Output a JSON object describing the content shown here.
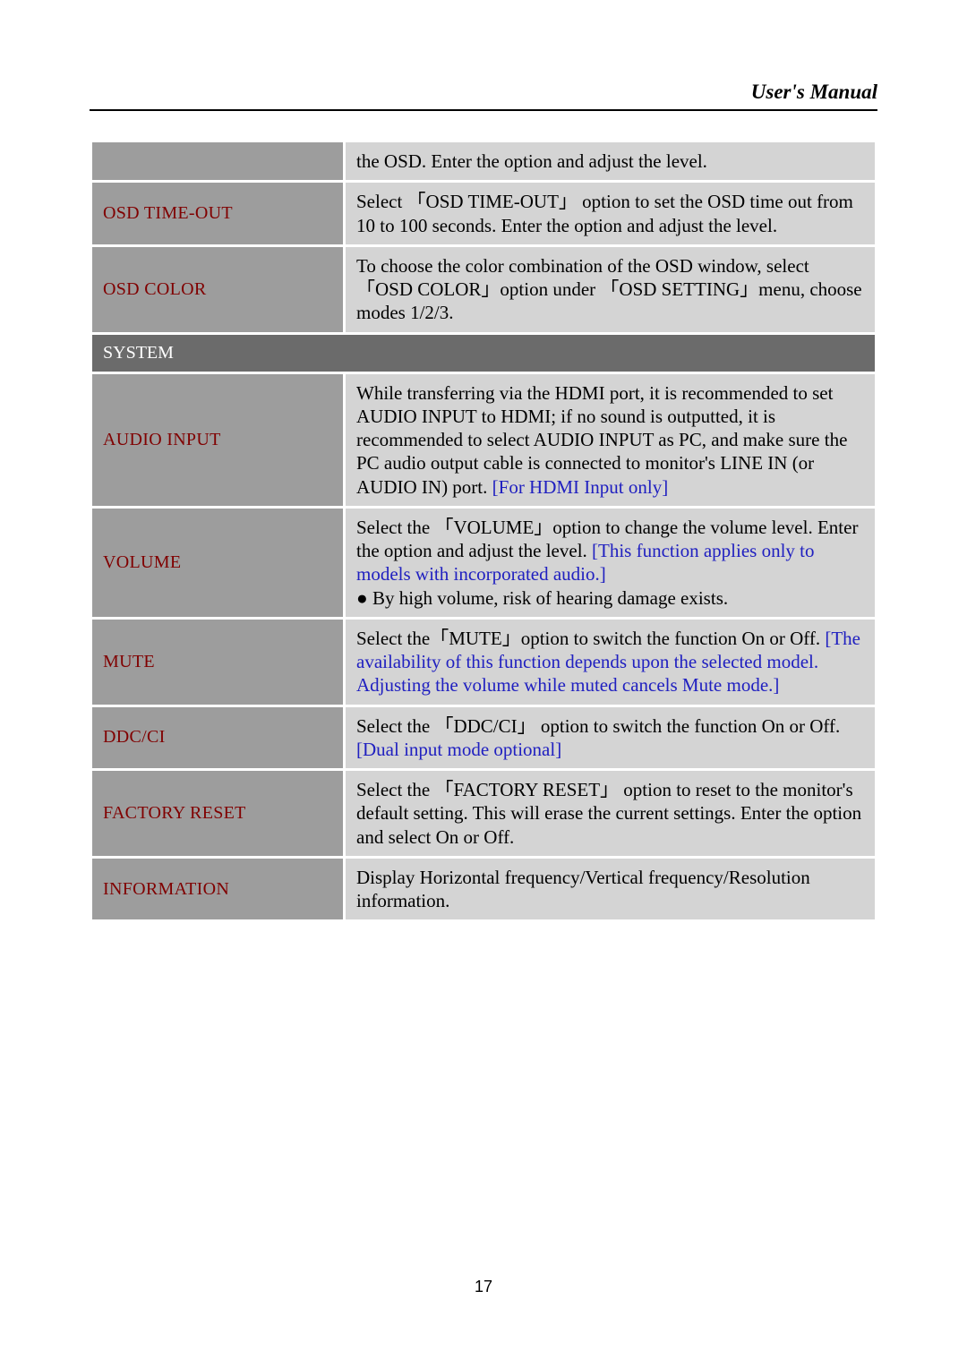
{
  "header": {
    "title": "User's Manual"
  },
  "page_number": "17",
  "colors": {
    "label_bg": "#9d9d9d",
    "label_text": "#800000",
    "desc_bg": "#d4d4d4",
    "section_bg": "#6b6b6b",
    "section_text": "#ffffff",
    "note_text": "#2020c0"
  },
  "rows": {
    "r0_desc": "the OSD. Enter the option and adjust the level.",
    "r1_label": "OSD TIME-OUT",
    "r1_desc": "Select 「OSD TIME-OUT」 option to set the OSD time out from 10 to 100 seconds. Enter the option and adjust the level.",
    "r2_label": "OSD COLOR",
    "r2_desc": "To choose the color combination of the OSD window, select 「OSD COLOR」option under 「OSD SETTING」menu, choose modes 1/2/3.",
    "section_system": "SYSTEM",
    "r3_label": "AUDIO INPUT",
    "r3_desc_a": "While transferring via the HDMI port, it is recommended to set AUDIO INPUT to HDMI; if no sound is outputted, it is recommended to select AUDIO INPUT as PC, and make sure the PC audio output cable is connected to monitor's LINE IN (or AUDIO IN) port. ",
    "r3_desc_note": "[For HDMI Input only]",
    "r4_label": "VOLUME",
    "r4_desc_a": "Select the 「VOLUME」option to change the volume level. Enter the option and adjust the level. ",
    "r4_desc_note": "[This function applies only to models with incorporated audio.]",
    "r4_bullet": "By high volume, risk of hearing damage exists.",
    "r5_label": "MUTE",
    "r5_desc_a": "Select the「MUTE」option to switch the function On or Off. ",
    "r5_desc_note": "[The availability of this function depends upon the selected model. Adjusting the volume while muted cancels Mute mode.]",
    "r6_label": "DDC/CI",
    "r6_desc_a": "Select the 「DDC/CI」 option to switch the function On or Off. ",
    "r6_desc_note": "[Dual input mode optional]",
    "r7_label": "FACTORY RESET",
    "r7_desc": "Select the 「FACTORY RESET」 option to reset to the monitor's default setting. This will erase the current settings. Enter the option and select On or Off.",
    "r8_label": "INFORMATION",
    "r8_desc": "Display Horizontal frequency/Vertical frequency/Resolution information."
  }
}
